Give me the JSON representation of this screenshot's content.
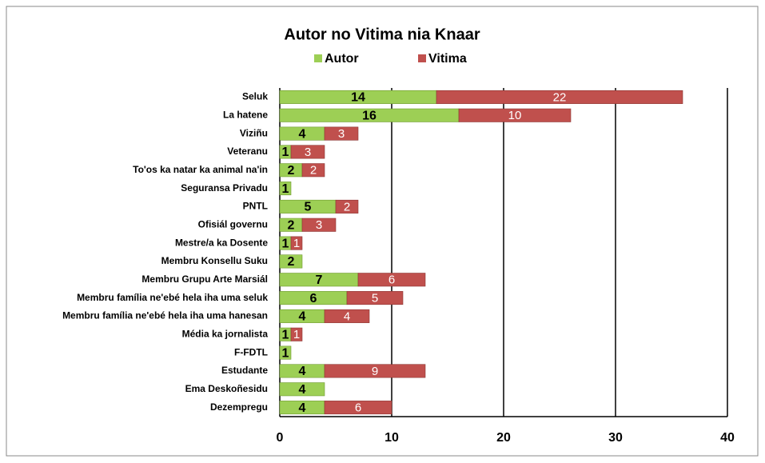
{
  "chart_data": {
    "type": "bar",
    "orientation": "horizontal",
    "stacked": true,
    "title": "Autor no Vitima nia Knaar",
    "categories": [
      "Seluk",
      "La hatene",
      "Viziñu",
      "Veteranu",
      "To'os ka natar ka animal na'in",
      "Seguransa Privadu",
      "PNTL",
      "Ofisiál governu",
      "Mestre/a ka Dosente",
      "Membru Konsellu Suku",
      "Membru Grupu Arte Marsiál",
      "Membru família ne'ebé hela iha uma seluk",
      "Membru família ne'ebé hela iha uma hanesan",
      "Média ka jornalista",
      "F-FDTL",
      "Estudante",
      "Ema Deskoñesidu",
      "Dezempregu"
    ],
    "series": [
      {
        "name": "Autor",
        "color": "#9dcf55",
        "values": [
          14,
          16,
          4,
          1,
          2,
          1,
          5,
          2,
          1,
          2,
          7,
          6,
          4,
          1,
          1,
          4,
          4,
          4
        ]
      },
      {
        "name": "Vitima",
        "color": "#c0504d",
        "values": [
          22,
          10,
          3,
          3,
          2,
          null,
          2,
          3,
          1,
          null,
          6,
          5,
          4,
          1,
          null,
          9,
          null,
          6
        ]
      }
    ],
    "xlim": [
      0,
      40
    ],
    "xticks": [
      0,
      10,
      20,
      30,
      40
    ],
    "grid": true,
    "legend": "top"
  }
}
